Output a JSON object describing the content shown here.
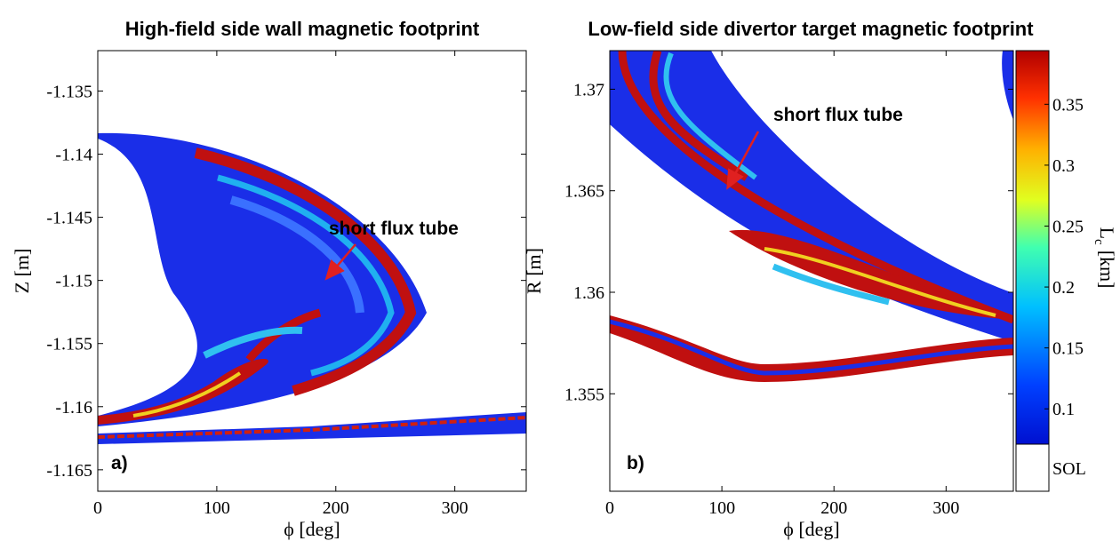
{
  "chart_data": [
    {
      "type": "footprint",
      "title": "High-field side wall magnetic footprint",
      "x_label": "ϕ [deg]",
      "y_label": "Z [m]",
      "xlim": [
        0,
        360
      ],
      "xticks": [
        0,
        100,
        200,
        300
      ],
      "ylim": [
        -1.1667,
        -1.1318
      ],
      "yticks": [
        -1.135,
        -1.14,
        -1.145,
        -1.15,
        -1.155,
        -1.16,
        -1.165
      ],
      "annotation": "short flux tube",
      "panel_label": "a)"
    },
    {
      "type": "footprint",
      "title": "Low-field side divertor target magnetic footprint",
      "x_label": "ϕ [deg]",
      "y_label": "R [m]",
      "xlim": [
        0,
        360
      ],
      "xticks": [
        0,
        100,
        200,
        300
      ],
      "ylim": [
        1.3502,
        1.3719
      ],
      "yticks": [
        1.37,
        1.365,
        1.36,
        1.355
      ],
      "annotation": "short flux tube",
      "panel_label": "b)",
      "colorbar": {
        "label": "L",
        "label_sub": "c",
        "label_unit": "[km]",
        "lim": [
          0.071,
          0.394
        ],
        "ticks": [
          0.1,
          0.15,
          0.2,
          0.25,
          0.3,
          0.35
        ],
        "extra_label": "SOL"
      }
    }
  ]
}
